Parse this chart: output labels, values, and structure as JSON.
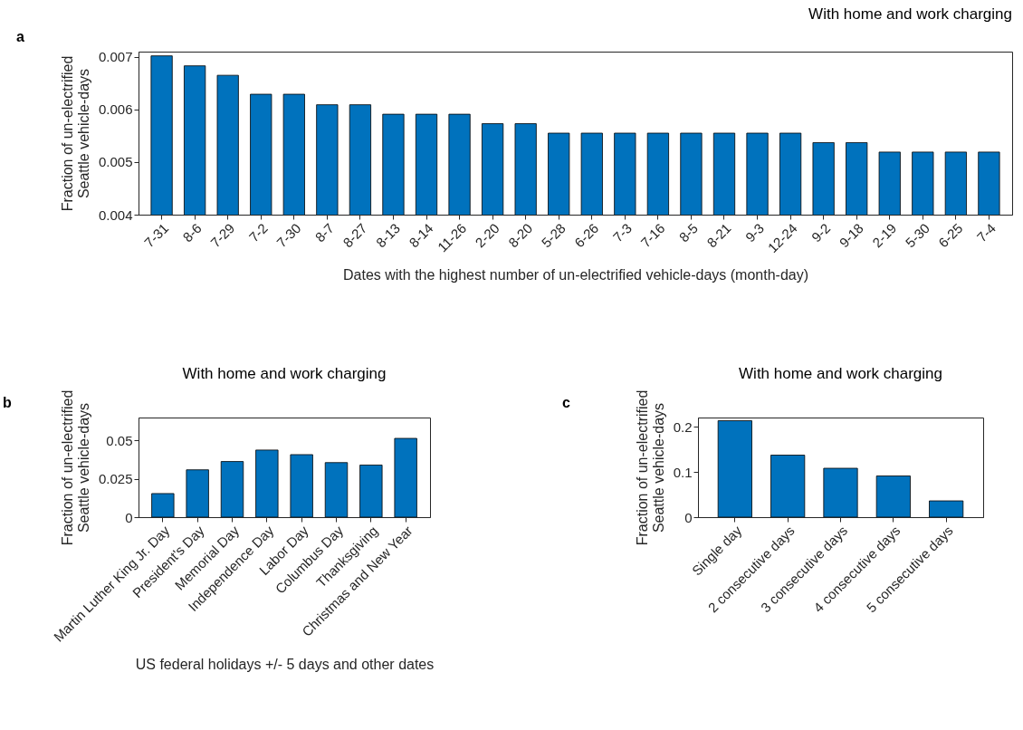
{
  "chart_data": [
    {
      "type": "bar",
      "title": "With home and work charging",
      "annotations": [
        "a"
      ],
      "xlabel": "Dates with the highest number of un-electrified vehicle-days (month-day)",
      "ylabel": "Fraction of un-electrified Seattle vehicle-days",
      "categories": [
        "7-31",
        "8-6",
        "7-29",
        "7-2",
        "7-30",
        "8-7",
        "8-27",
        "8-13",
        "8-14",
        "11-26",
        "2-20",
        "8-20",
        "5-28",
        "6-26",
        "7-3",
        "7-16",
        "8-5",
        "8-21",
        "9-3",
        "12-24",
        "9-2",
        "9-18",
        "2-19",
        "5-30",
        "6-25",
        "7-4"
      ],
      "values": [
        0.00702,
        0.00683,
        0.00665,
        0.00629,
        0.00629,
        0.00609,
        0.00609,
        0.00591,
        0.00591,
        0.00591,
        0.00573,
        0.00573,
        0.00555,
        0.00555,
        0.00555,
        0.00555,
        0.00555,
        0.00555,
        0.00555,
        0.00555,
        0.00537,
        0.00537,
        0.00519,
        0.00519,
        0.00519,
        0.00519
      ],
      "color": "#0072bd",
      "ylim": [
        0.004,
        0.0071
      ],
      "yticks": [
        0.004,
        0.005,
        0.006,
        0.007
      ],
      "grid": false
    },
    {
      "type": "bar",
      "title": "With home and work charging",
      "annotations": [
        "b"
      ],
      "xlabel": "US federal holidays +/- 5 days and other dates",
      "ylabel": "Fraction of un-electrified Seattle vehicle-days",
      "categories": [
        "Martin Luther King Jr. Day",
        "President's Day",
        "Memorial Day",
        "Independence Day",
        "Labor Day",
        "Columbus Day",
        "Thanksgiving",
        "Christmas and New Year"
      ],
      "values": [
        0.0154,
        0.0309,
        0.0363,
        0.0438,
        0.0408,
        0.0356,
        0.034,
        0.0514
      ],
      "color": "#0072bd",
      "ylim": [
        0,
        0.065
      ],
      "yticks": [
        0,
        0.025,
        0.05
      ],
      "grid": false
    },
    {
      "type": "bar",
      "title": "With home and work charging",
      "annotations": [
        "c"
      ],
      "ylabel": "Fraction of un-electrified Seattle vehicle-days",
      "categories": [
        "Single day",
        "2 consecutive days",
        "3 consecutive days",
        "4 consecutive days",
        "5 consecutive days"
      ],
      "values": [
        0.213,
        0.137,
        0.108,
        0.091,
        0.036
      ],
      "color": "#0072bd",
      "ylim": [
        0,
        0.22
      ],
      "yticks": [
        0,
        0.1,
        0.2
      ],
      "grid": false
    }
  ]
}
